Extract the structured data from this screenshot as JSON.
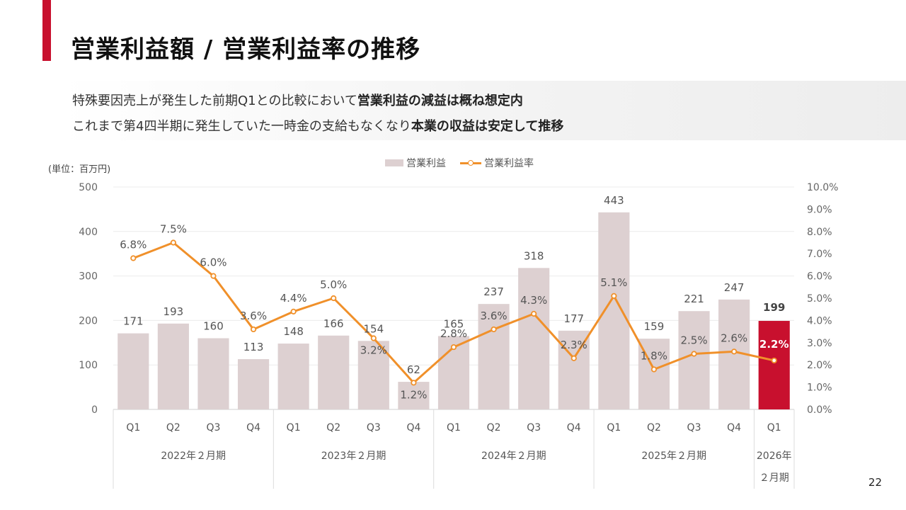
{
  "slide": {
    "title": "営業利益額 / 営業利益率の推移",
    "summary": {
      "line1_plain": "特殊要因売上が発生した前期Q1との比較において",
      "line1_bold": "営業利益の減益は概ね想定内",
      "line2_plain": "これまで第4四半期に発生していた一時金の支給もなくなり",
      "line2_bold": "本業の収益は安定して推移"
    },
    "unit_label": "(単位：百万円)",
    "page_number": "22"
  },
  "colors": {
    "accent": "#c8102e",
    "bar": "#ddd0d1",
    "bar_highlight": "#c8102e",
    "line": "#f0902a"
  },
  "chart_data": {
    "type": "bar",
    "combo_series_type": "line",
    "categories": [
      "Q1",
      "Q2",
      "Q3",
      "Q4",
      "Q1",
      "Q2",
      "Q3",
      "Q4",
      "Q1",
      "Q2",
      "Q3",
      "Q4",
      "Q1",
      "Q2",
      "Q3",
      "Q4",
      "Q1"
    ],
    "groups": [
      {
        "label": "2022年２月期",
        "count": 4
      },
      {
        "label": "2023年２月期",
        "count": 4
      },
      {
        "label": "2024年２月期",
        "count": 4
      },
      {
        "label": "2025年２月期",
        "count": 4
      },
      {
        "label": "2026年\n２月期",
        "count": 1
      }
    ],
    "series": [
      {
        "name": "営業利益",
        "type": "bar",
        "axis": "left",
        "values": [
          171,
          193,
          160,
          113,
          148,
          166,
          154,
          62,
          165,
          237,
          318,
          177,
          443,
          159,
          221,
          247,
          199
        ],
        "labels": [
          "171",
          "193",
          "160",
          "113",
          "148",
          "166",
          "154",
          "62",
          "165",
          "237",
          "318",
          "177",
          "443",
          "159",
          "221",
          "247",
          "199"
        ]
      },
      {
        "name": "営業利益率",
        "type": "line",
        "axis": "right",
        "values": [
          6.8,
          7.5,
          6.0,
          3.6,
          4.4,
          5.0,
          3.2,
          1.2,
          2.8,
          3.6,
          4.3,
          2.3,
          5.1,
          1.8,
          2.5,
          2.6,
          2.2
        ],
        "labels": [
          "6.8%",
          "7.5%",
          "6.0%",
          "3.6%",
          "4.4%",
          "5.0%",
          "3.2%",
          "1.2%",
          "2.8%",
          "3.6%",
          "4.3%",
          "2.3%",
          "5.1%",
          "1.8%",
          "2.5%",
          "2.6%",
          "2.2%"
        ]
      }
    ],
    "highlight_index": 16,
    "y_left": {
      "min": 0,
      "max": 500,
      "ticks": [
        "0",
        "100",
        "200",
        "300",
        "400",
        "500"
      ]
    },
    "y_right": {
      "min": 0,
      "max": 10,
      "ticks": [
        "0.0%",
        "1.0%",
        "2.0%",
        "3.0%",
        "4.0%",
        "5.0%",
        "6.0%",
        "7.0%",
        "8.0%",
        "9.0%",
        "10.0%"
      ]
    },
    "grid": true,
    "legend": "top-center"
  }
}
